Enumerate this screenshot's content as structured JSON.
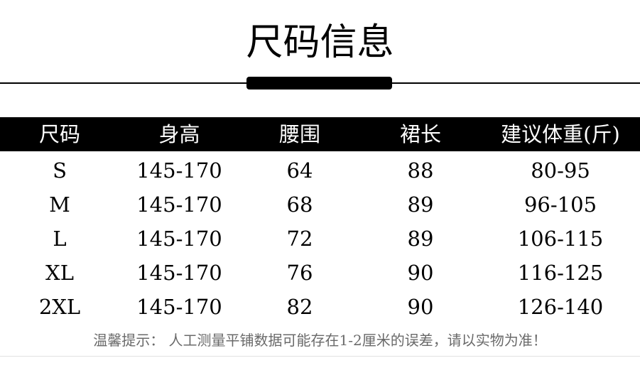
{
  "title": "尺码信息",
  "table": {
    "headers": [
      "尺码",
      "身高",
      "腰围",
      "裙长",
      "建议体重(斤)"
    ],
    "rows": [
      [
        "S",
        "145-170",
        "64",
        "88",
        "80-95"
      ],
      [
        "M",
        "145-170",
        "68",
        "89",
        "96-105"
      ],
      [
        "L",
        "145-170",
        "72",
        "89",
        "106-115"
      ],
      [
        "XL",
        "145-170",
        "76",
        "90",
        "116-125"
      ],
      [
        "2XL",
        "145-170",
        "82",
        "90",
        "126-140"
      ]
    ]
  },
  "note": "温馨提示：  人工测量平铺数据可能存在1-2厘米的误差，请以实物为准！"
}
